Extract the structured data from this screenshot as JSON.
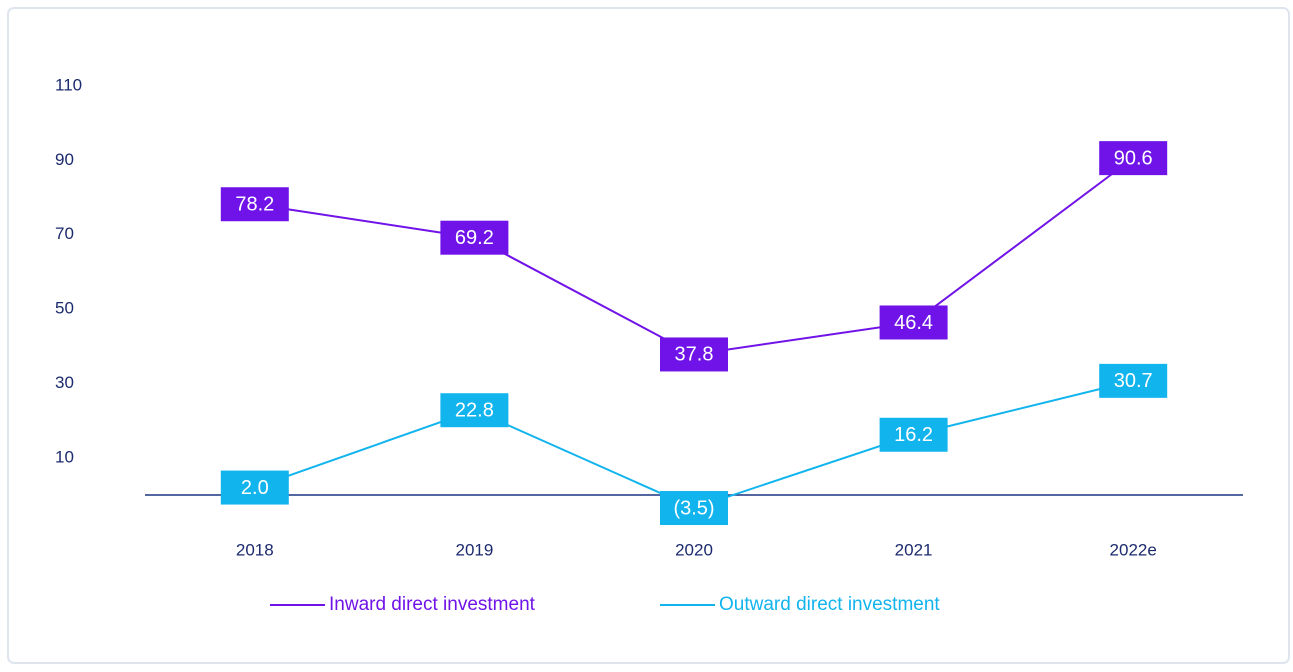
{
  "chart_data": {
    "type": "line",
    "categories": [
      "2018",
      "2019",
      "2020",
      "2021",
      "2022e"
    ],
    "series": [
      {
        "name": "Inward direct investment",
        "color": "#7013e8",
        "values": [
          78.2,
          69.2,
          37.8,
          46.4,
          90.6
        ],
        "value_labels": [
          "78.2",
          "69.2",
          "37.8",
          "46.4",
          "90.6"
        ]
      },
      {
        "name": "Outward direct investment",
        "color": "#12b4ee",
        "values": [
          2.0,
          22.8,
          -3.5,
          16.2,
          30.7
        ],
        "value_labels": [
          "2.0",
          "22.8",
          "(3.5)",
          "16.2",
          "30.7"
        ]
      }
    ],
    "ylim": [
      0,
      110
    ],
    "yticks": [
      10,
      30,
      50,
      70,
      90,
      110
    ],
    "grid": false,
    "legend": "bottom"
  }
}
